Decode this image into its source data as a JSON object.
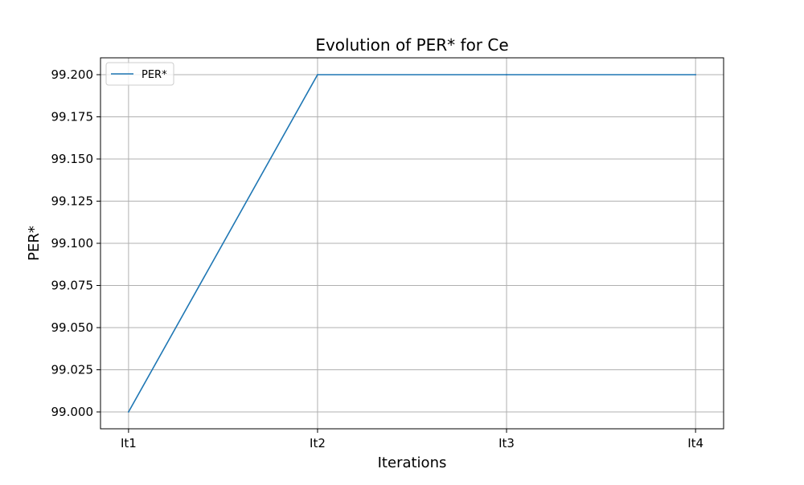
{
  "chart_data": {
    "type": "line",
    "title": "Evolution of PER* for Ce",
    "xlabel": "Iterations",
    "ylabel": "PER*",
    "categories": [
      "It1",
      "It2",
      "It3",
      "It4"
    ],
    "series": [
      {
        "name": "PER*",
        "values": [
          99.0,
          99.2,
          99.2,
          99.2
        ],
        "color": "#1f77b4"
      }
    ],
    "ylim": [
      98.99,
      99.21
    ],
    "yticks": [
      99.0,
      99.025,
      99.05,
      99.075,
      99.1,
      99.125,
      99.15,
      99.175,
      99.2
    ],
    "ytick_labels": [
      "99.000",
      "99.025",
      "99.050",
      "99.075",
      "99.100",
      "99.125",
      "99.150",
      "99.175",
      "99.200"
    ],
    "grid": true,
    "legend": "top-left"
  }
}
